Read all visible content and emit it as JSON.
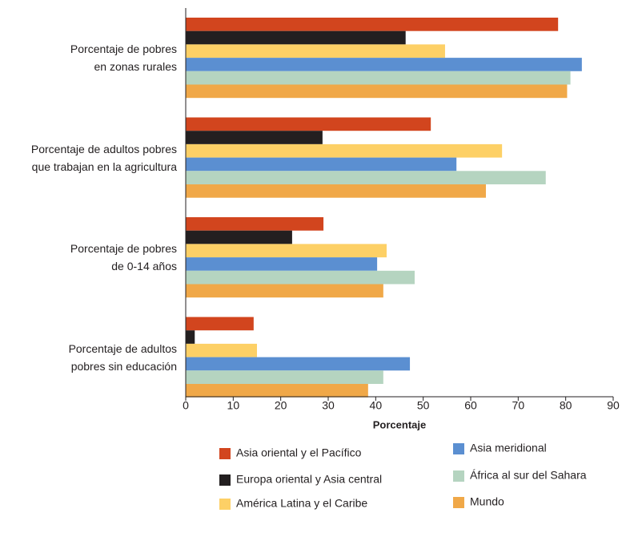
{
  "chart_data": {
    "type": "bar",
    "orientation": "horizontal",
    "x_label": "Porcentaje",
    "categories": [
      "Porcentaje de pobres\nen zonas rurales",
      "Porcentaje de adultos pobres\nque trabajan en la agricultura",
      "Porcentaje de pobres\nde 0-14 años",
      "Porcentaje de adultos\npobres sin educación"
    ],
    "series": [
      {
        "name": "Asia oriental y el Pacífico",
        "color": "#d2451e",
        "values": [
          78.4,
          51.6,
          29,
          14.3
        ]
      },
      {
        "name": "Europa oriental y Asia central",
        "color": "#231f20",
        "values": [
          46.3,
          28.8,
          22.4,
          1.9
        ]
      },
      {
        "name": "América Latina y el Caribe",
        "color": "#fdd066",
        "values": [
          54.6,
          66.6,
          42.3,
          15
        ]
      },
      {
        "name": "Asia meridional",
        "color": "#5b8fd1",
        "values": [
          83.4,
          57,
          40.3,
          47.2
        ]
      },
      {
        "name": "África al sur del Sahara",
        "color": "#b5d4c0",
        "values": [
          81,
          75.8,
          48.2,
          41.6
        ]
      },
      {
        "name": "Mundo",
        "color": "#f0a848",
        "values": [
          80.3,
          63.2,
          41.6,
          38.4
        ]
      }
    ],
    "xlim": [
      0,
      90
    ],
    "xticks": [
      0,
      10,
      20,
      30,
      40,
      50,
      60,
      70,
      80,
      90
    ],
    "grid": false
  }
}
